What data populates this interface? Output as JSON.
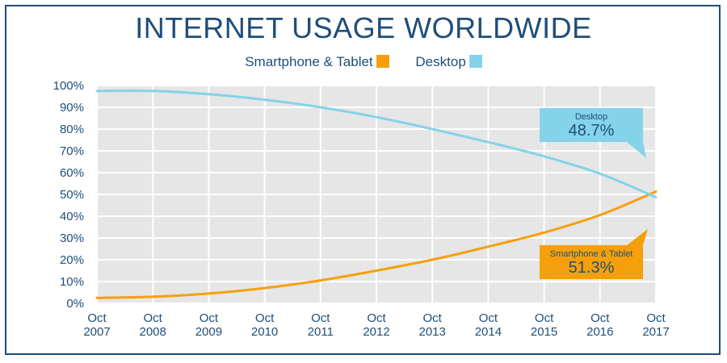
{
  "chart_data": {
    "type": "line",
    "title": "INTERNET USAGE WORLDWIDE",
    "categories": [
      "Oct 2007",
      "Oct 2008",
      "Oct 2009",
      "Oct 2010",
      "Oct 2011",
      "Oct 2012",
      "Oct 2013",
      "Oct 2014",
      "Oct 2015",
      "Oct 2016",
      "Oct 2017"
    ],
    "category_lines": [
      [
        "Oct",
        "2007"
      ],
      [
        "Oct",
        "2008"
      ],
      [
        "Oct",
        "2009"
      ],
      [
        "Oct",
        "2010"
      ],
      [
        "Oct",
        "2011"
      ],
      [
        "Oct",
        "2012"
      ],
      [
        "Oct",
        "2013"
      ],
      [
        "Oct",
        "2014"
      ],
      [
        "Oct",
        "2015"
      ],
      [
        "Oct",
        "2016"
      ],
      [
        "Oct",
        "2017"
      ]
    ],
    "yticks": [
      "0%",
      "10%",
      "20%",
      "30%",
      "40%",
      "50%",
      "60%",
      "70%",
      "80%",
      "90%",
      "100%"
    ],
    "ylim": [
      0,
      100
    ],
    "grid": true,
    "legend_position": "top",
    "series": [
      {
        "name": "Smartphone & Tablet",
        "color": "#f5a00a",
        "values": [
          2.5,
          3.0,
          4.5,
          7.0,
          10.5,
          15.0,
          20.0,
          26.0,
          32.5,
          40.5,
          51.3
        ]
      },
      {
        "name": "Desktop",
        "color": "#84d3ea",
        "values": [
          97.5,
          97.5,
          96.0,
          93.5,
          90.0,
          85.5,
          80.0,
          74.0,
          67.5,
          59.5,
          48.7
        ]
      }
    ],
    "annotations": [
      {
        "label": "Desktop",
        "value": "48.7%",
        "color": "#84d3ea"
      },
      {
        "label": "Smartphone & Tablet",
        "value": "51.3%",
        "color": "#f5a00a"
      }
    ]
  }
}
